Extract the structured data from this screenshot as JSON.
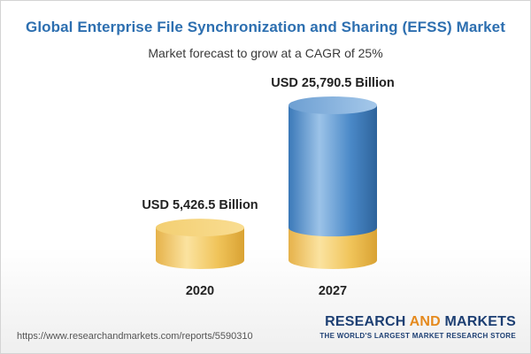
{
  "chart_data": {
    "type": "bar",
    "title": "Global Enterprise File Synchronization and Sharing (EFSS) Market",
    "subtitle": "Market forecast to grow at a CAGR of 25%",
    "categories": [
      "2020",
      "2027"
    ],
    "values": [
      5426.5,
      25790.5
    ],
    "value_labels": [
      "USD 5,426.5 Billion",
      "USD 25,790.5 Billion"
    ],
    "unit": "USD Billion",
    "ylim": [
      0,
      25790.5
    ],
    "grid": false,
    "legend": "none",
    "colors": {
      "base_light": "#f7d98a",
      "base_main": "#f0c45a",
      "base_dark": "#d9a233",
      "growth_light": "#8db8e0",
      "growth_main": "#3f7fbf",
      "growth_dark": "#2e639b"
    }
  },
  "footer": {
    "source_url": "https://www.researchandmarkets.com/reports/5590310",
    "brand_part1": "RESEARCH ",
    "brand_part2": "AND",
    "brand_part3": " MARKETS",
    "brand_tagline": "THE WORLD'S LARGEST MARKET RESEARCH STORE"
  }
}
